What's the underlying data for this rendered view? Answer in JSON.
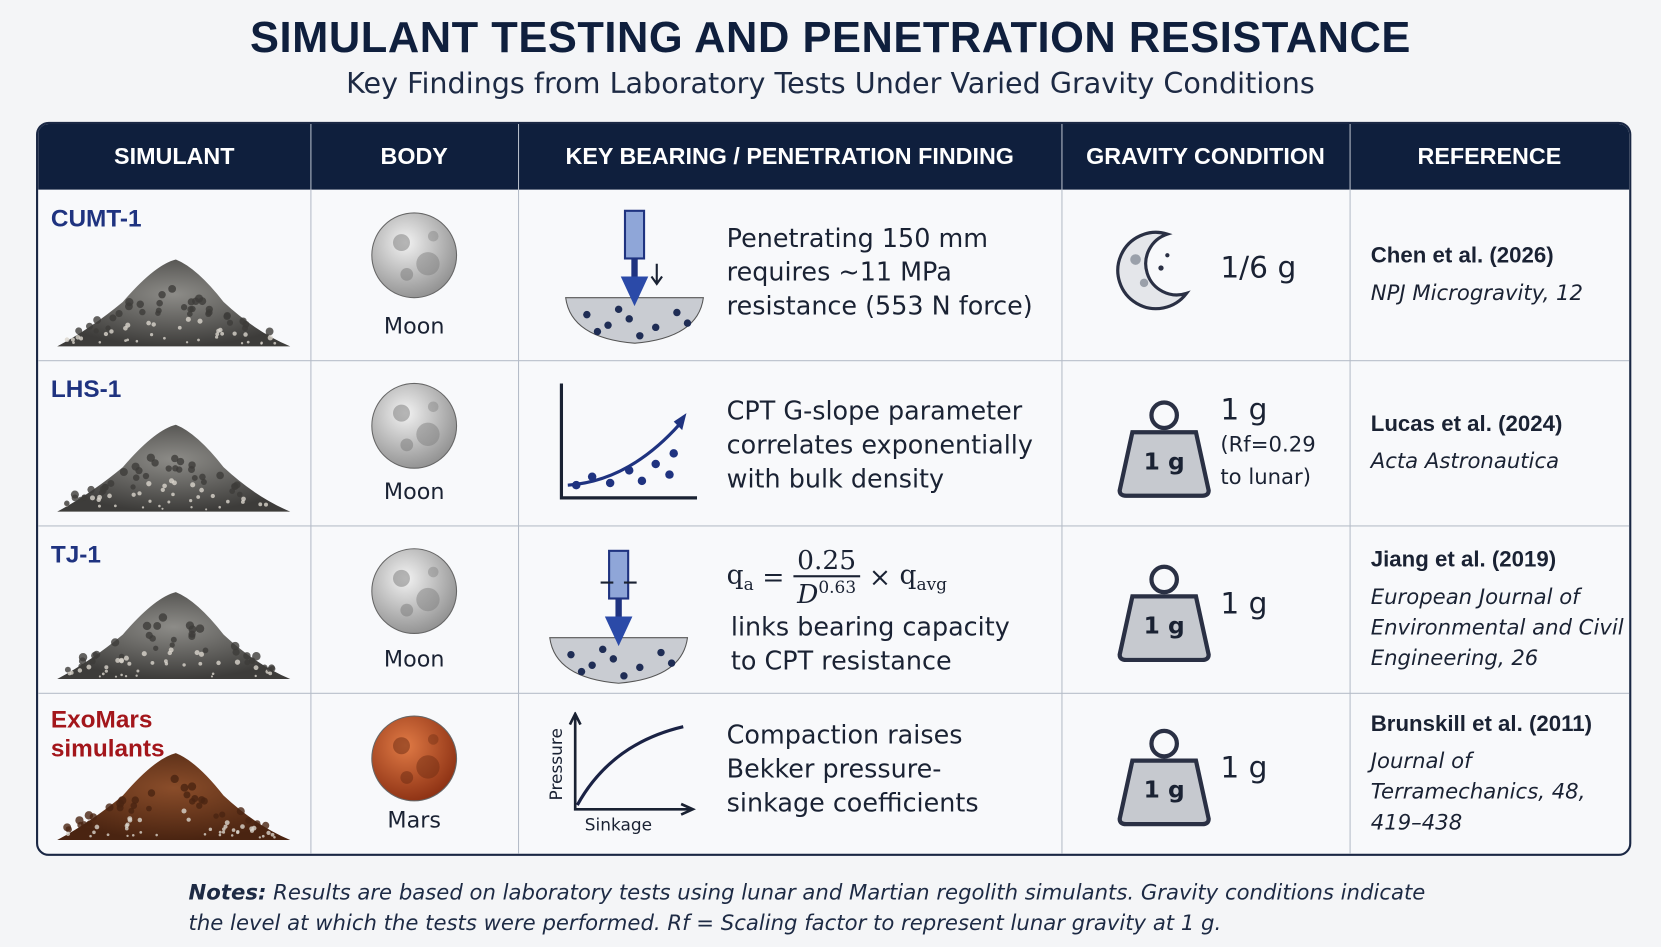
{
  "header": {
    "title": "SIMULANT TESTING AND PENETRATION RESISTANCE",
    "subtitle": "Key Findings from Laboratory Tests Under Varied Gravity Conditions"
  },
  "table": {
    "columns": [
      "SIMULANT",
      "BODY",
      "KEY BEARING / PENETRATION FINDING",
      "GRAVITY CONDITION",
      "REFERENCE"
    ],
    "rows": [
      {
        "simulant": "CUMT-1",
        "body": "Moon",
        "finding": "Penetrating 150 mm requires ~11 MPa resistance (553 N force)",
        "gravity": "1/6 g",
        "reference_authors": "Chen et al. (2026)",
        "reference_source": "NPJ Microgravity, 12"
      },
      {
        "simulant": "LHS-1",
        "body": "Moon",
        "finding": "CPT G-slope parameter correlates exponentially with bulk density",
        "gravity_icon_label": "1 g",
        "gravity": "1 g",
        "gravity_note": "(Rf=0.29 to lunar)",
        "reference_authors": "Lucas et al. (2024)",
        "reference_source": "Acta Astronautica"
      },
      {
        "simulant": "TJ-1",
        "body": "Moon",
        "formula": {
          "lhs": "q",
          "lhs_sub": "a",
          "equals": "=",
          "numerator": "0.25",
          "denominator": "D",
          "exponent": "0.63",
          "times": "×",
          "rhs": "q",
          "rhs_sub": "avg"
        },
        "finding": "links bearing capacity to CPT resistance",
        "gravity_icon_label": "1 g",
        "gravity": "1 g",
        "reference_authors": "Jiang et al. (2019)",
        "reference_source": "European Journal of Environmental and Civil Engineering, 26"
      },
      {
        "simulant": "ExoMars simulants",
        "body": "Mars",
        "finding": "Compaction raises Bekker pressure-sinkage coefficients",
        "plot_y_label": "Pressure",
        "plot_x_label": "Sinkage",
        "gravity_icon_label": "1 g",
        "gravity": "1 g",
        "reference_authors": "Brunskill et al. (2011)",
        "reference_source": "Journal of Terramechanics, 48, 419–438"
      }
    ]
  },
  "notes": {
    "label": "Notes:",
    "text": "Results are based on laboratory tests using lunar and Martian regolith simulants. Gravity conditions indicate the level at which the tests were performed. Rf = Scaling factor to represent lunar gravity at 1 g."
  }
}
